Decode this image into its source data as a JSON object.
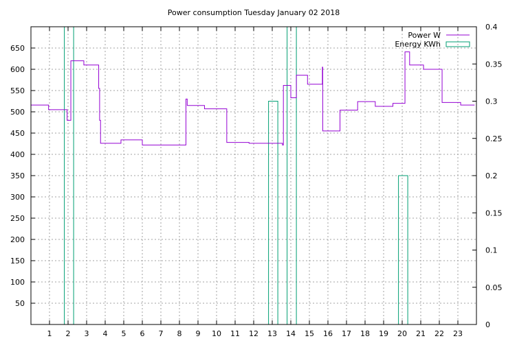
{
  "chart_data": {
    "type": "line",
    "title": "Power consumption Tuesday January 02 2018",
    "xlabel": "",
    "ylabel": "",
    "xlim": [
      0,
      24
    ],
    "ylim": [
      0,
      700
    ],
    "y2lim": [
      0,
      0.4
    ],
    "grid": true,
    "legend_position": "top-right",
    "x_ticks": [
      1,
      2,
      3,
      4,
      5,
      6,
      7,
      8,
      9,
      10,
      11,
      12,
      13,
      14,
      15,
      16,
      17,
      18,
      19,
      20,
      21,
      22,
      23
    ],
    "y_ticks": [
      50,
      100,
      150,
      200,
      250,
      300,
      350,
      400,
      450,
      500,
      550,
      600,
      650
    ],
    "y2_ticks": [
      "0",
      "0.05",
      "0.1",
      "0.15",
      "0.2",
      "0.25",
      "0.3",
      "0.35",
      "0.4"
    ],
    "series": [
      {
        "name": "Power W",
        "axis": "left",
        "color": "#9400d3",
        "style": "step",
        "points": [
          [
            0,
            516
          ],
          [
            0.95,
            516
          ],
          [
            0.95,
            505
          ],
          [
            1.95,
            505
          ],
          [
            1.95,
            480
          ],
          [
            2.15,
            480
          ],
          [
            2.15,
            620
          ],
          [
            2.85,
            620
          ],
          [
            2.85,
            610
          ],
          [
            3.65,
            610
          ],
          [
            3.65,
            555
          ],
          [
            3.7,
            555
          ],
          [
            3.7,
            480
          ],
          [
            3.75,
            480
          ],
          [
            3.75,
            426
          ],
          [
            4.85,
            426
          ],
          [
            4.85,
            434
          ],
          [
            6.0,
            434
          ],
          [
            6.0,
            422
          ],
          [
            8.35,
            422
          ],
          [
            8.35,
            530
          ],
          [
            8.42,
            530
          ],
          [
            8.42,
            515
          ],
          [
            9.35,
            515
          ],
          [
            9.35,
            507
          ],
          [
            10.55,
            507
          ],
          [
            10.55,
            428
          ],
          [
            11.75,
            428
          ],
          [
            11.75,
            426
          ],
          [
            13.55,
            426
          ],
          [
            13.55,
            422
          ],
          [
            13.6,
            422
          ],
          [
            13.6,
            562
          ],
          [
            14.0,
            562
          ],
          [
            14.0,
            533
          ],
          [
            14.3,
            533
          ],
          [
            14.3,
            586
          ],
          [
            14.9,
            586
          ],
          [
            14.9,
            565
          ],
          [
            15.7,
            565
          ],
          [
            15.7,
            605
          ],
          [
            15.72,
            605
          ],
          [
            15.72,
            455
          ],
          [
            16.65,
            455
          ],
          [
            16.65,
            504
          ],
          [
            17.6,
            504
          ],
          [
            17.6,
            524
          ],
          [
            18.55,
            524
          ],
          [
            18.55,
            513
          ],
          [
            19.5,
            513
          ],
          [
            19.5,
            520
          ],
          [
            20.15,
            520
          ],
          [
            20.15,
            641
          ],
          [
            20.4,
            641
          ],
          [
            20.4,
            610
          ],
          [
            21.15,
            610
          ],
          [
            21.15,
            600
          ],
          [
            22.15,
            600
          ],
          [
            22.15,
            522
          ],
          [
            23.15,
            522
          ],
          [
            23.15,
            516
          ],
          [
            23.9,
            516
          ]
        ]
      },
      {
        "name": "Energy KWh",
        "axis": "right",
        "color": "#009e73",
        "style": "boxes",
        "boxes": [
          {
            "x0": 1.8,
            "x1": 2.3,
            "value": 0.4
          },
          {
            "x0": 12.8,
            "x1": 13.3,
            "value": 0.3
          },
          {
            "x0": 13.8,
            "x1": 14.3,
            "value": 0.4
          },
          {
            "x0": 19.8,
            "x1": 20.3,
            "value": 0.2
          }
        ]
      }
    ]
  }
}
